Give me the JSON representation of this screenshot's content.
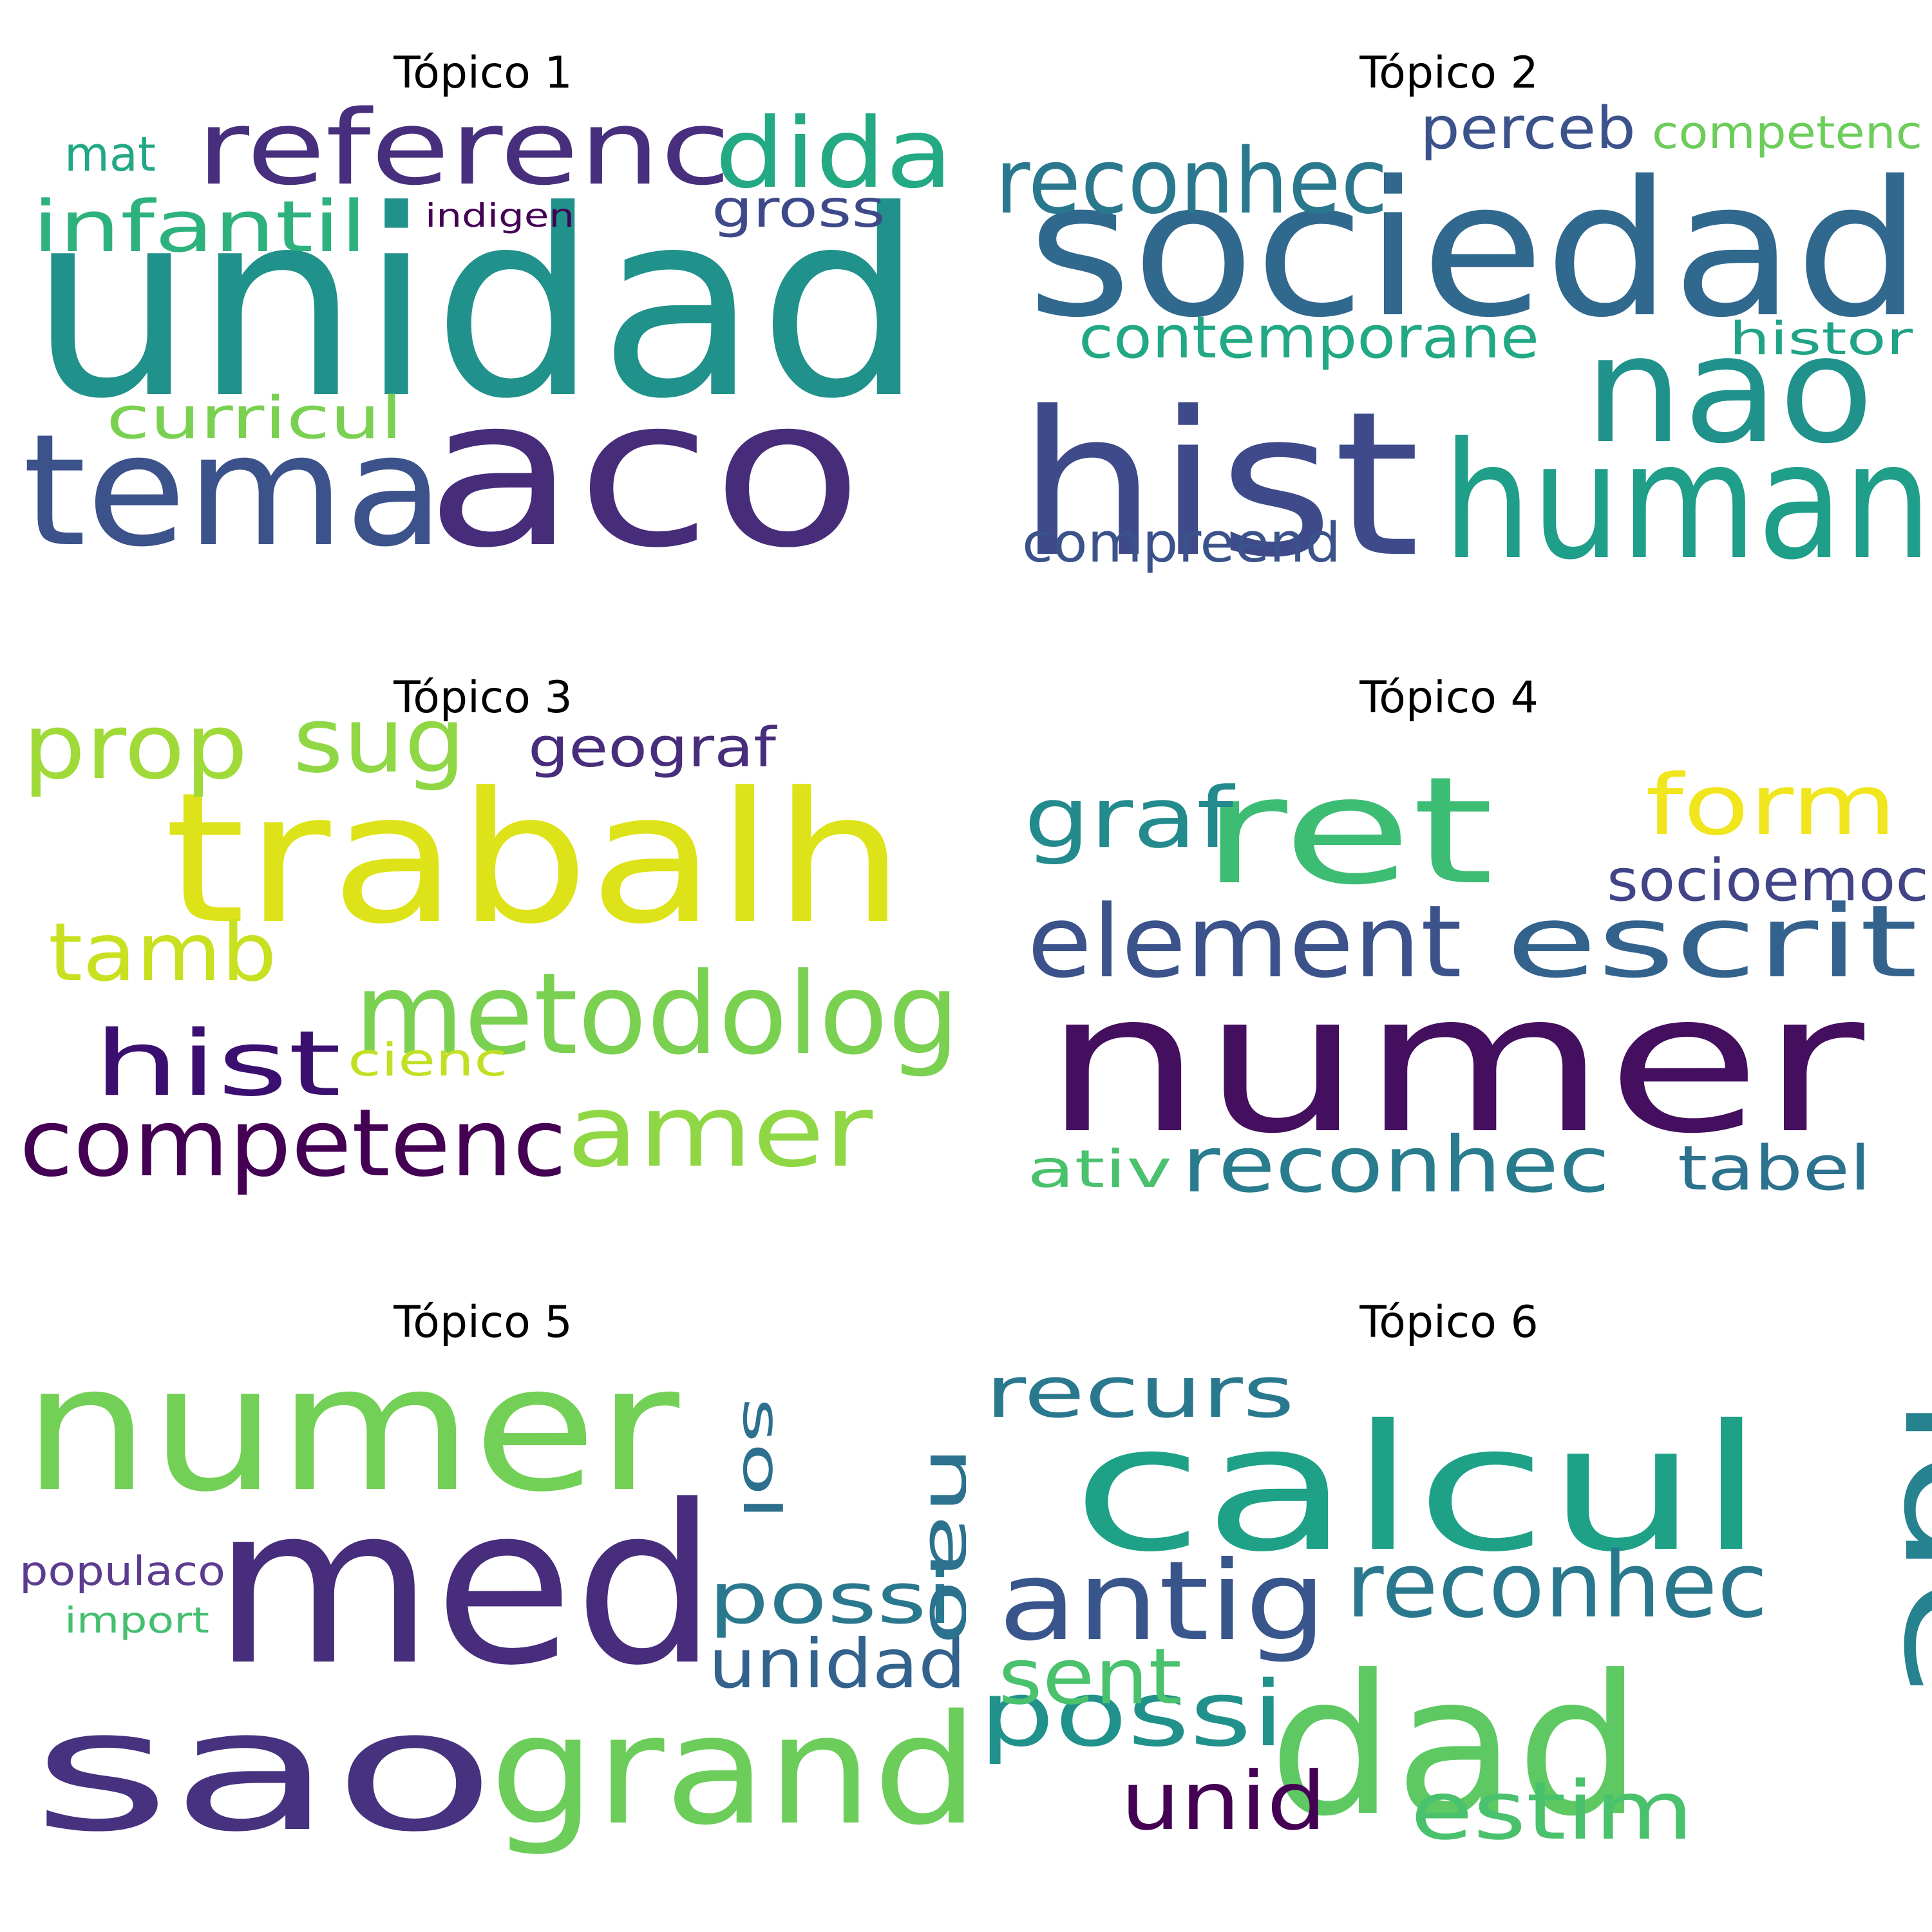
{
  "chart_data": [
    {
      "type": "wordcloud",
      "title": "Tópico 1",
      "colormap": "viridis",
      "words": [
        {
          "text": "unidad",
          "color": "#21918c"
        },
        {
          "text": "aco",
          "color": "#472c7a"
        },
        {
          "text": "tema",
          "color": "#3b528b"
        },
        {
          "text": "referenc",
          "color": "#472f7d"
        },
        {
          "text": "dida",
          "color": "#23a983"
        },
        {
          "text": "infantil",
          "color": "#2db27d"
        },
        {
          "text": "curricul",
          "color": "#7ad151"
        },
        {
          "text": "gross",
          "color": "#3e4989"
        },
        {
          "text": "mat",
          "color": "#22a884"
        },
        {
          "text": "indigen",
          "color": "#440154"
        }
      ]
    },
    {
      "type": "wordcloud",
      "title": "Tópico 2",
      "colormap": "viridis",
      "words": [
        {
          "text": "sociedad",
          "color": "#31688e"
        },
        {
          "text": "hist",
          "color": "#3e4a89"
        },
        {
          "text": "human",
          "color": "#1f9e89"
        },
        {
          "text": "nao",
          "color": "#21918c"
        },
        {
          "text": "reconhec",
          "color": "#2a788e"
        },
        {
          "text": "contemporane",
          "color": "#22a884"
        },
        {
          "text": "compreend",
          "color": "#3b528b"
        },
        {
          "text": "perceb",
          "color": "#3b528b"
        },
        {
          "text": "competenc",
          "color": "#6ccd5a"
        },
        {
          "text": "histor",
          "color": "#20a386"
        }
      ]
    },
    {
      "type": "wordcloud",
      "title": "Tópico 3",
      "colormap": "viridis",
      "words": [
        {
          "text": "trabalh",
          "color": "#dde318"
        },
        {
          "text": "metodolog",
          "color": "#7ad151"
        },
        {
          "text": "competenc",
          "color": "#440154"
        },
        {
          "text": "amer",
          "color": "#8fd744"
        },
        {
          "text": "hist",
          "color": "#3b0f70"
        },
        {
          "text": "prop",
          "color": "#a0da39"
        },
        {
          "text": "sug",
          "color": "#8fd744"
        },
        {
          "text": "tamb",
          "color": "#c8e020"
        },
        {
          "text": "geograf",
          "color": "#472d7b"
        },
        {
          "text": "cienc",
          "color": "#c2df23"
        }
      ]
    },
    {
      "type": "wordcloud",
      "title": "Tópico 4",
      "colormap": "viridis",
      "words": [
        {
          "text": "numer",
          "color": "#440f5e"
        },
        {
          "text": "ret",
          "color": "#3dbc74"
        },
        {
          "text": "element",
          "color": "#3b528b"
        },
        {
          "text": "escrit",
          "color": "#33638d"
        },
        {
          "text": "reconhec",
          "color": "#287c8e"
        },
        {
          "text": "graf",
          "color": "#238a8d"
        },
        {
          "text": "form",
          "color": "#f1e51d"
        },
        {
          "text": "socioemoc",
          "color": "#414487"
        },
        {
          "text": "tabel",
          "color": "#2c728e"
        },
        {
          "text": "ativ",
          "color": "#4ac16d"
        }
      ]
    },
    {
      "type": "wordcloud",
      "title": "Tópico 5",
      "colormap": "viridis",
      "words": [
        {
          "text": "numer",
          "color": "#73d056"
        },
        {
          "text": "med",
          "color": "#472d7b"
        },
        {
          "text": "sao",
          "color": "#46327e"
        },
        {
          "text": "grand",
          "color": "#6ccd5a"
        },
        {
          "text": "possi",
          "color": "#2a788e"
        },
        {
          "text": "unidad",
          "color": "#33638d"
        },
        {
          "text": "nao",
          "color": "#2c728e"
        },
        {
          "text": "sol",
          "color": "#2d708e"
        },
        {
          "text": "populaco",
          "color": "#5c3c8f"
        },
        {
          "text": "import",
          "color": "#44bf70"
        }
      ]
    },
    {
      "type": "wordcloud",
      "title": "Tópico 6",
      "colormap": "viridis",
      "words": [
        {
          "text": "calcul",
          "color": "#1fa187"
        },
        {
          "text": "dad",
          "color": "#5ec962"
        },
        {
          "text": "ide",
          "color": "#26828e"
        },
        {
          "text": "antig",
          "color": "#39568c"
        },
        {
          "text": "reconhec",
          "color": "#2a788e"
        },
        {
          "text": "possi",
          "color": "#21918c"
        },
        {
          "text": "recurs",
          "color": "#2a788e"
        },
        {
          "text": "sent",
          "color": "#4ac16d"
        },
        {
          "text": "unid",
          "color": "#440154"
        },
        {
          "text": "estim",
          "color": "#4ac16d"
        }
      ]
    }
  ]
}
